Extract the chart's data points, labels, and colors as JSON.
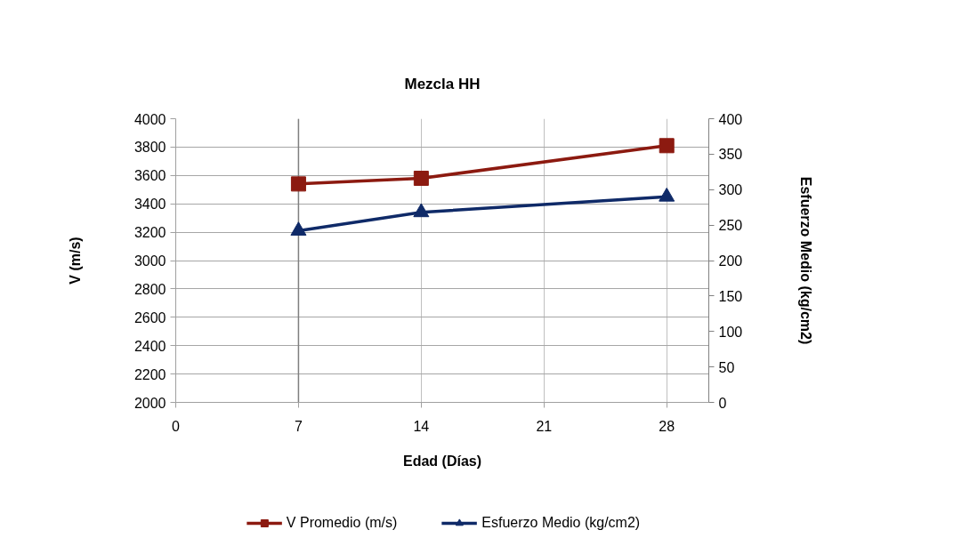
{
  "chart_data": {
    "type": "line",
    "title": "Mezcla HH",
    "xlabel": "Edad (Días)",
    "ylabel": "V (m/s)",
    "y2label": "Esfuerzo Medio (kg/cm2)",
    "x": [
      7,
      14,
      28
    ],
    "series": [
      {
        "name": "V Promedio (m/s)",
        "color": "#8c1a10",
        "values": [
          3540,
          3580,
          3810
        ],
        "marker": "square"
      },
      {
        "name": "Esfuerzo Medio (kg/cm2)",
        "color": "#0f2a68",
        "values": [
          242,
          268,
          290
        ],
        "axis": "y2",
        "marker": "triangle"
      }
    ],
    "xlim": [
      0,
      30.4
    ],
    "xticks": [
      0,
      7,
      14,
      21,
      28
    ],
    "ylim": [
      2000,
      4000
    ],
    "yticks": [
      2000,
      2200,
      2400,
      2600,
      2800,
      3000,
      3200,
      3400,
      3600,
      3800,
      4000
    ],
    "y2lim": [
      0,
      400
    ],
    "y2ticks": [
      0,
      50,
      100,
      150,
      200,
      250,
      300,
      350,
      400
    ],
    "grid": true,
    "legend": "bottom",
    "line_style": "solid",
    "ref_lines": [
      {
        "axis": "x",
        "value": 7,
        "color": "#7f7f7f"
      }
    ]
  }
}
